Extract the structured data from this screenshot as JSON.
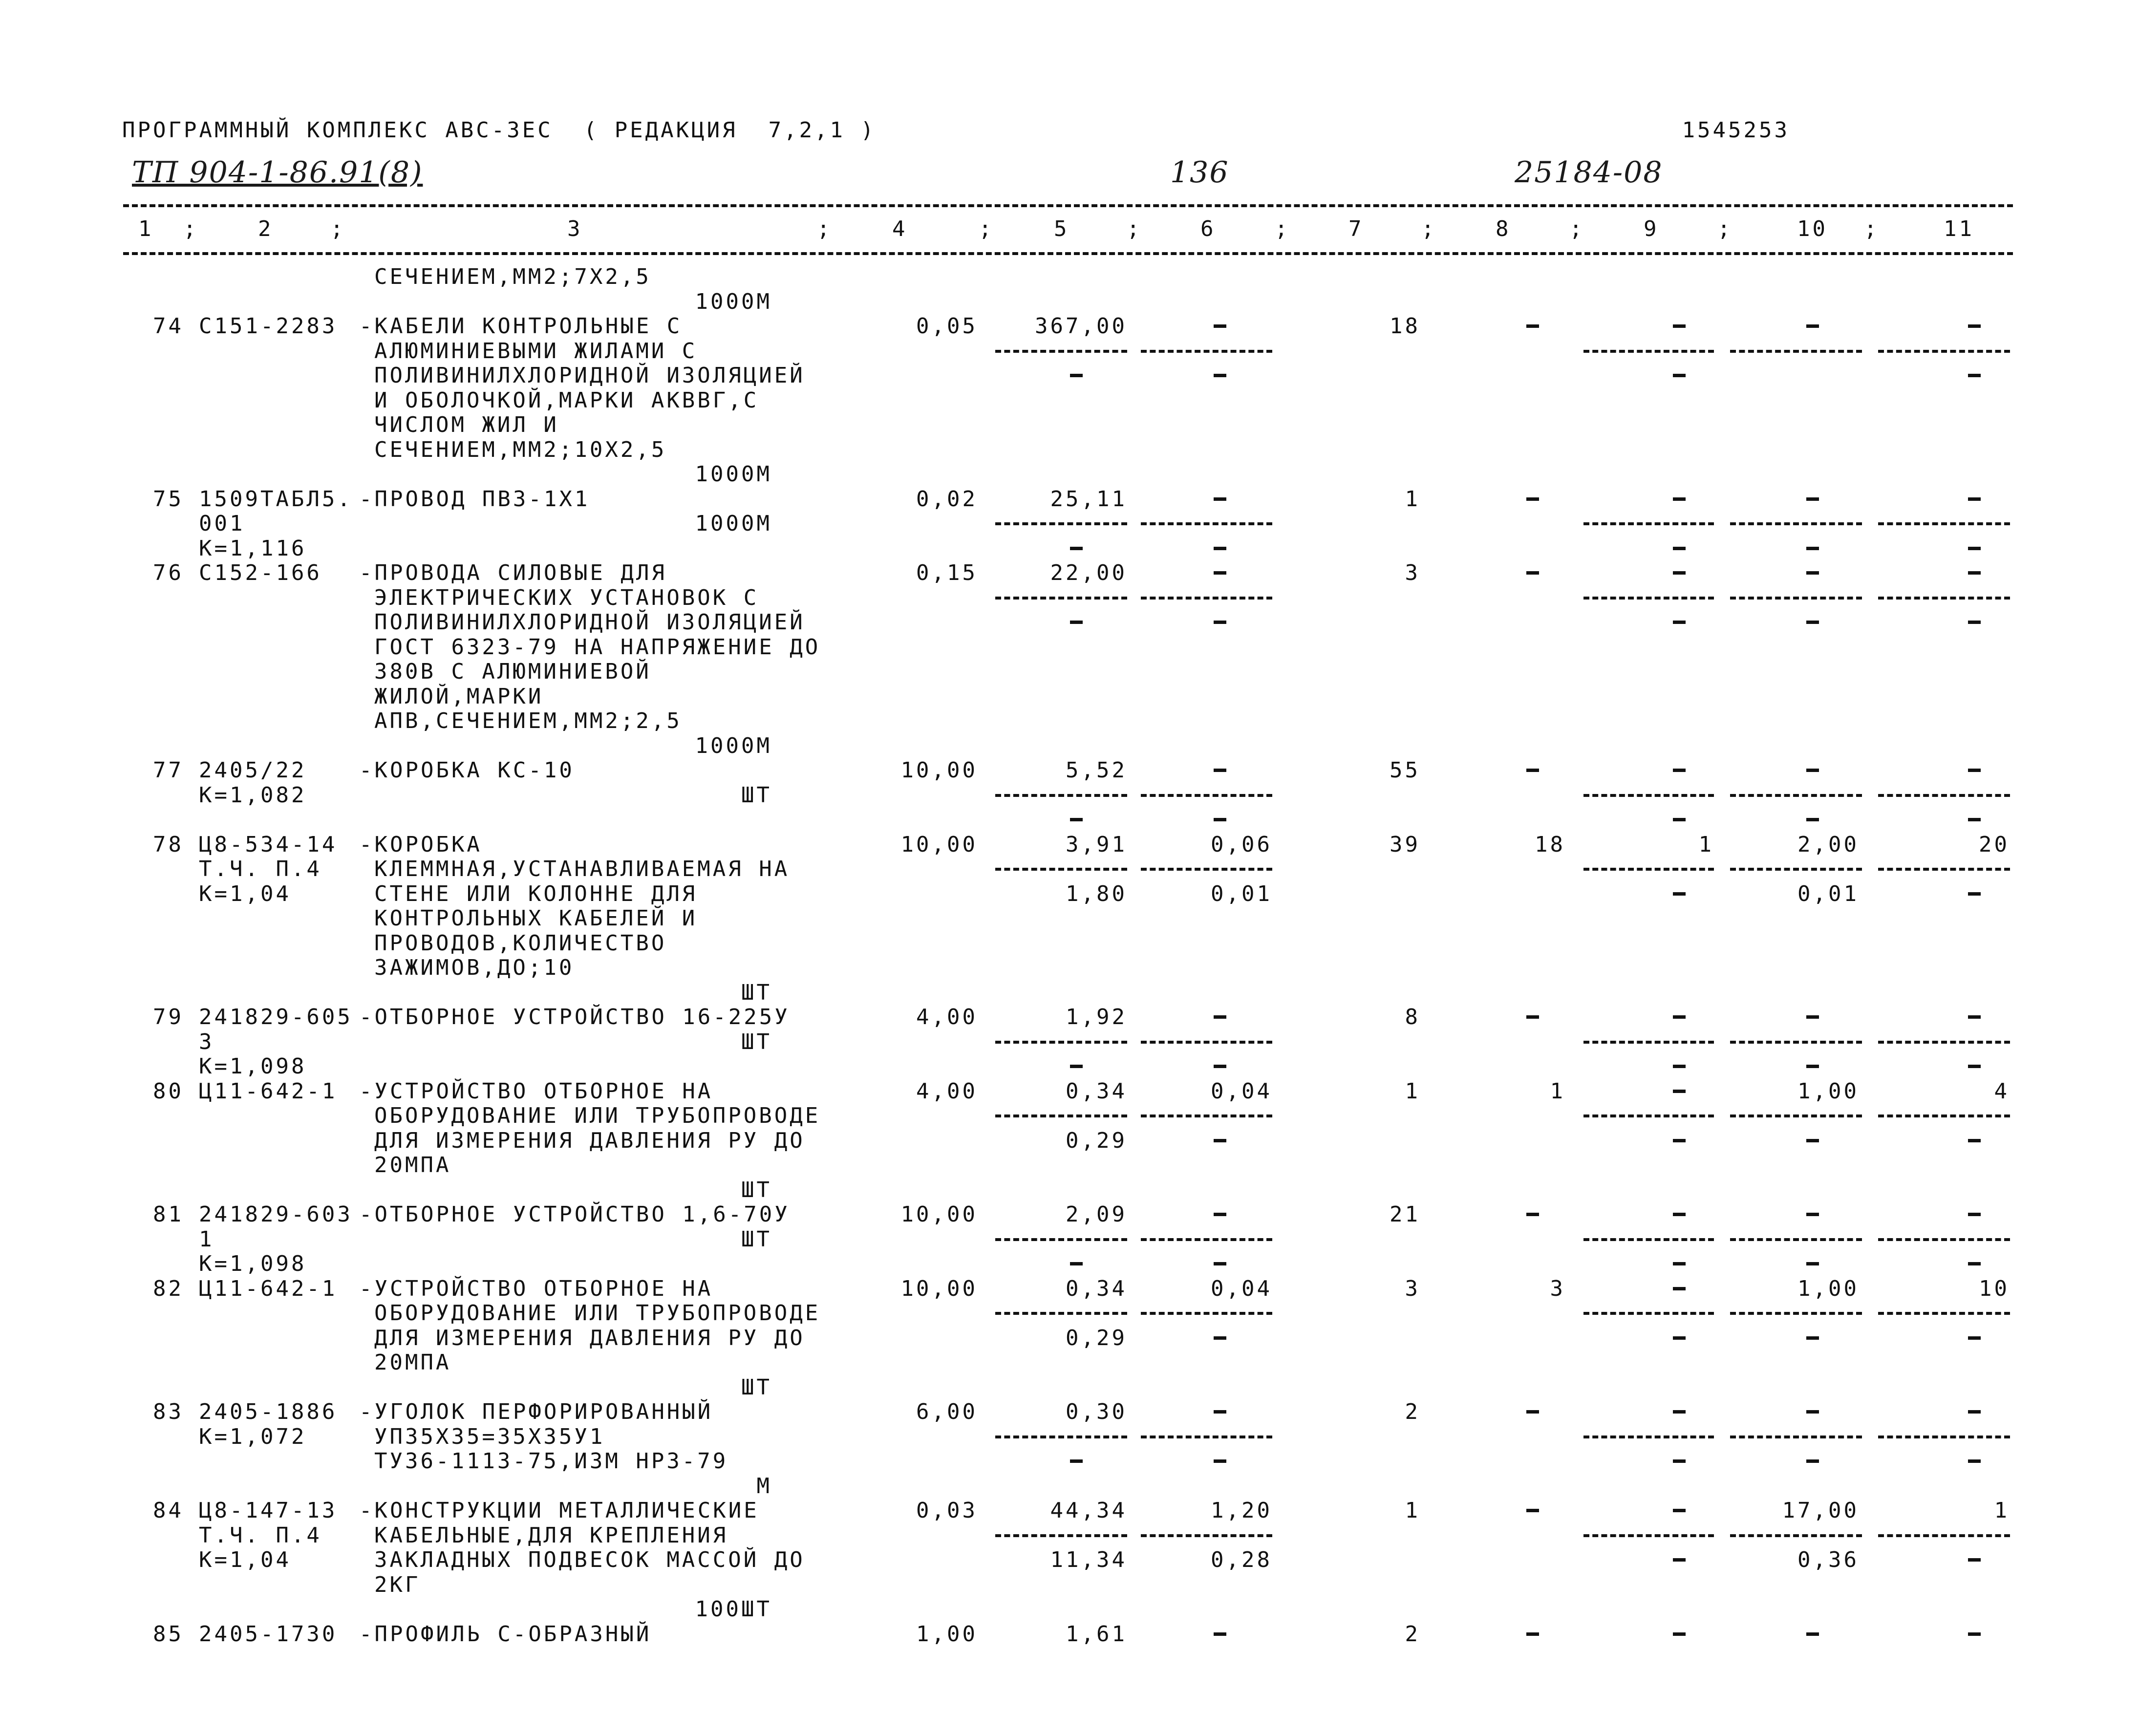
{
  "header": {
    "program": "ПРОГРАММНЫЙ КОМПЛЕКС АВС-3ЕС  ( РЕДАКЦИЯ  7,2,1 )",
    "doc_number": "1545253",
    "handwritten_project": "ТП 904-1-86.91(8)",
    "handwritten_page": "136",
    "handwritten_code": "25184-08"
  },
  "columns": [
    "1",
    "2",
    "3",
    "4",
    "5",
    "6",
    "7",
    "8",
    "9",
    "10",
    "11"
  ],
  "column_separator": ";",
  "rows": [
    {
      "num": "",
      "lines": [
        {
          "desc": "СЕЧЕНИЕМ,ММ2;7Х2,5"
        },
        {
          "unit": "1000М"
        }
      ]
    },
    {
      "num": "74",
      "lines": [
        {
          "code": "С151-2283",
          "desc": "-КАБЕЛИ КОНТРОЛЬНЫЕ С"
        },
        {
          "desc": "АЛЮМИНИЕВЫМИ ЖИЛАМИ С"
        },
        {
          "desc": "ПОЛИВИНИЛХЛОРИДНОЙ ИЗОЛЯЦИЕЙ"
        },
        {
          "desc": "И ОБОЛОЧКОЙ,МАРКИ АКВВГ,С"
        },
        {
          "desc": "ЧИСЛОМ ЖИЛ И"
        },
        {
          "desc": "СЕЧЕНИЕМ,ММ2;10Х2,5"
        },
        {
          "unit": "1000М"
        }
      ],
      "c4": "0,05",
      "c5": [
        "367,00",
        "-"
      ],
      "c6": [
        "-",
        "-"
      ],
      "c7": "18",
      "c8": "-",
      "c9": [
        "-",
        "-"
      ],
      "c10": [
        "-",
        ""
      ],
      "c11": [
        "-",
        "-"
      ]
    },
    {
      "num": "75",
      "lines": [
        {
          "code": "1509ТАБЛ5.",
          "desc": "-ПРОВОД ПВ3-1Х1"
        },
        {
          "code": "001",
          "unit": "1000М"
        },
        {
          "code": "К=1,116"
        }
      ],
      "c4": "0,02",
      "c5": [
        "25,11",
        "-"
      ],
      "c6": [
        "-",
        "-"
      ],
      "c7": "1",
      "c8": "-",
      "c9": [
        "-",
        "-"
      ],
      "c10": [
        "-",
        "-"
      ],
      "c11": [
        "-",
        "-"
      ]
    },
    {
      "num": "76",
      "lines": [
        {
          "code": "С152-166",
          "desc": "-ПРОВОДА СИЛОВЫЕ ДЛЯ"
        },
        {
          "desc": "ЭЛЕКТРИЧЕСКИХ УСТАНОВОК С"
        },
        {
          "desc": "ПОЛИВИНИЛХЛОРИДНОЙ ИЗОЛЯЦИЕЙ"
        },
        {
          "desc": "ГОСТ 6323-79 НА НАПРЯЖЕНИЕ ДО"
        },
        {
          "desc": "380В С АЛЮМИНИЕВОЙ"
        },
        {
          "desc": "ЖИЛОЙ,МАРКИ"
        },
        {
          "desc": "АПВ,СЕЧЕНИЕМ,ММ2;2,5"
        },
        {
          "unit": "1000М"
        }
      ],
      "c4": "0,15",
      "c5": [
        "22,00",
        "-"
      ],
      "c6": [
        "-",
        "-"
      ],
      "c7": "3",
      "c8": "-",
      "c9": [
        "-",
        "-"
      ],
      "c10": [
        "-",
        "-"
      ],
      "c11": [
        "-",
        "-"
      ]
    },
    {
      "num": "77",
      "lines": [
        {
          "code": "2405/22",
          "desc": "-КОРОБКА КС-10"
        },
        {
          "code": "К=1,082",
          "unit": "ШТ"
        },
        {}
      ],
      "c4": "10,00",
      "c5": [
        "5,52",
        "-"
      ],
      "c6": [
        "-",
        "-"
      ],
      "c7": "55",
      "c8": "-",
      "c9": [
        "-",
        "-"
      ],
      "c10": [
        "-",
        "-"
      ],
      "c11": [
        "-",
        "-"
      ]
    },
    {
      "num": "78",
      "lines": [
        {
          "code": "Ц8-534-14",
          "desc": "-КОРОБКА"
        },
        {
          "code": "Т.Ч. П.4",
          "desc": "КЛЕММНАЯ,УСТАНАВЛИВАЕМАЯ НА"
        },
        {
          "code": "К=1,04",
          "desc": "СТЕНЕ ИЛИ КОЛОННЕ ДЛЯ"
        },
        {
          "desc": "КОНТРОЛЬНЫХ КАБЕЛЕЙ И"
        },
        {
          "desc": "ПРОВОДОВ,КОЛИЧЕСТВО"
        },
        {
          "desc": "ЗАЖИМОВ,ДО;10"
        },
        {
          "unit": "ШТ"
        }
      ],
      "c4": "10,00",
      "c5": [
        "3,91",
        "1,80"
      ],
      "c6": [
        "0,06",
        "0,01"
      ],
      "c7": "39",
      "c8": "18",
      "c9": [
        "1",
        "-"
      ],
      "c10": [
        "2,00",
        "0,01"
      ],
      "c11": [
        "20",
        "-"
      ]
    },
    {
      "num": "79",
      "lines": [
        {
          "code": "241829-605",
          "desc": "-ОТБОРНОЕ УСТРОЙСТВО 16-225У"
        },
        {
          "code": "3",
          "unit": "ШТ"
        },
        {
          "code": "К=1,098"
        }
      ],
      "c4": "4,00",
      "c5": [
        "1,92",
        "-"
      ],
      "c6": [
        "-",
        "-"
      ],
      "c7": "8",
      "c8": "-",
      "c9": [
        "-",
        "-"
      ],
      "c10": [
        "-",
        "-"
      ],
      "c11": [
        "-",
        "-"
      ]
    },
    {
      "num": "80",
      "lines": [
        {
          "code": "Ц11-642-1",
          "desc": "-УСТРОЙСТВО ОТБОРНОЕ НА"
        },
        {
          "desc": "ОБОРУДОВАНИЕ ИЛИ ТРУБОПРОВОДЕ"
        },
        {
          "desc": "ДЛЯ ИЗМЕРЕНИЯ ДАВЛЕНИЯ РУ ДО"
        },
        {
          "desc": "20МПА"
        },
        {
          "unit": "ШТ"
        }
      ],
      "c4": "4,00",
      "c5": [
        "0,34",
        "0,29"
      ],
      "c6": [
        "0,04",
        "-"
      ],
      "c7": "1",
      "c8": "1",
      "c9": [
        "-",
        "-"
      ],
      "c10": [
        "1,00",
        "-"
      ],
      "c11": [
        "4",
        "-"
      ]
    },
    {
      "num": "81",
      "lines": [
        {
          "code": "241829-603",
          "desc": "-ОТБОРНОЕ УСТРОЙСТВО 1,6-70У"
        },
        {
          "code": "1",
          "unit": "ШТ"
        },
        {
          "code": "К=1,098"
        }
      ],
      "c4": "10,00",
      "c5": [
        "2,09",
        "-"
      ],
      "c6": [
        "-",
        "-"
      ],
      "c7": "21",
      "c8": "-",
      "c9": [
        "-",
        "-"
      ],
      "c10": [
        "-",
        "-"
      ],
      "c11": [
        "-",
        "-"
      ]
    },
    {
      "num": "82",
      "lines": [
        {
          "code": "Ц11-642-1",
          "desc": "-УСТРОЙСТВО ОТБОРНОЕ НА"
        },
        {
          "desc": "ОБОРУДОВАНИЕ ИЛИ ТРУБОПРОВОДЕ"
        },
        {
          "desc": "ДЛЯ ИЗМЕРЕНИЯ ДАВЛЕНИЯ РУ ДО"
        },
        {
          "desc": "20МПА"
        },
        {
          "unit": "ШТ"
        }
      ],
      "c4": "10,00",
      "c5": [
        "0,34",
        "0,29"
      ],
      "c6": [
        "0,04",
        "-"
      ],
      "c7": "3",
      "c8": "3",
      "c9": [
        "-",
        "-"
      ],
      "c10": [
        "1,00",
        "-"
      ],
      "c11": [
        "10",
        "-"
      ]
    },
    {
      "num": "83",
      "lines": [
        {
          "code": "2405-1886",
          "desc": "-УГОЛОК ПЕРФОРИРОВАННЫЙ"
        },
        {
          "code": "К=1,072",
          "desc": "УП35Х35=35Х35У1"
        },
        {
          "desc": "ТУ36-1113-75,ИЗМ НР3-79"
        },
        {
          "unit": "М"
        }
      ],
      "c4": "6,00",
      "c5": [
        "0,30",
        "-"
      ],
      "c6": [
        "-",
        "-"
      ],
      "c7": "2",
      "c8": "-",
      "c9": [
        "-",
        "-"
      ],
      "c10": [
        "-",
        "-"
      ],
      "c11": [
        "-",
        "-"
      ]
    },
    {
      "num": "84",
      "lines": [
        {
          "code": "Ц8-147-13",
          "desc": "-КОНСТРУКЦИИ МЕТАЛЛИЧЕСКИЕ"
        },
        {
          "code": "Т.Ч. П.4",
          "desc": "КАБЕЛЬНЫЕ,ДЛЯ КРЕПЛЕНИЯ"
        },
        {
          "code": "К=1,04",
          "desc": "ЗАКЛАДНЫХ ПОДВЕСОК МАССОЙ ДО"
        },
        {
          "desc": "2КГ"
        },
        {
          "unit": "100ШТ"
        }
      ],
      "c4": "0,03",
      "c5": [
        "44,34",
        "11,34"
      ],
      "c6": [
        "1,20",
        "0,28"
      ],
      "c7": "1",
      "c8": "-",
      "c9": [
        "-",
        "-"
      ],
      "c10": [
        "17,00",
        "0,36"
      ],
      "c11": [
        "1",
        "-"
      ]
    },
    {
      "num": "85",
      "lines": [
        {
          "code": "2405-1730",
          "desc": "-ПРОФИЛЬ С-ОБРАЗНЫЙ"
        }
      ],
      "c4": "1,00",
      "c5": [
        "1,61"
      ],
      "c6": [
        "-"
      ],
      "c7": "2",
      "c8": "-",
      "c9": [
        "-"
      ],
      "c10": [
        "-"
      ],
      "c11": [
        "-"
      ]
    }
  ]
}
